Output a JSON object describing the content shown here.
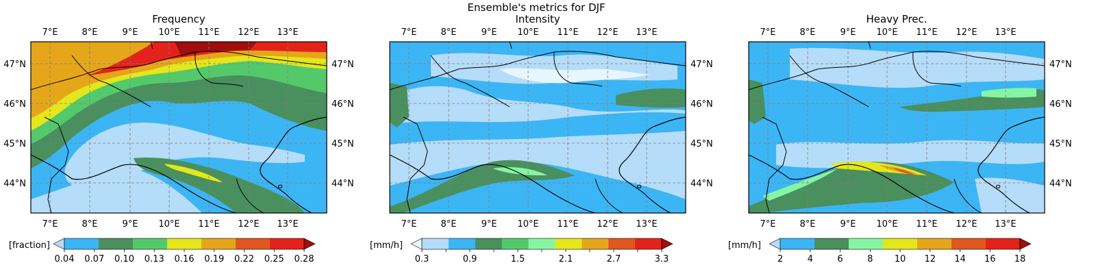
{
  "figure_title": "Ensemble's metrics for DJF",
  "lon_labels": [
    "7°E",
    "8°E",
    "9°E",
    "10°E",
    "11°E",
    "12°E",
    "13°E"
  ],
  "lat_labels": [
    "47°N",
    "46°N",
    "45°N",
    "44°N"
  ],
  "panels": [
    {
      "title": "Frequency",
      "unit": "[fraction]",
      "ticks": [
        "0.04",
        "0.07",
        "0.10",
        "0.13",
        "0.16",
        "0.19",
        "0.22",
        "0.25",
        "0.28"
      ],
      "colors": [
        "#b5dcf8",
        "#3cb5f5",
        "#4a8f5e",
        "#54c96c",
        "#e3e71b",
        "#e5a61a",
        "#e2561f",
        "#e3231b",
        "#a10e0e"
      ]
    },
    {
      "title": "Intensity",
      "unit": "[mm/h]",
      "ticks": [
        "0.3",
        "",
        "0.9",
        "",
        "1.5",
        "",
        "2.1",
        "",
        "2.7",
        "",
        "3.3"
      ],
      "colors": [
        "#e7f5fd",
        "#b5dcf8",
        "#3cb5f5",
        "#4a8f5e",
        "#54c96c",
        "#86f5a3",
        "#e3e71b",
        "#e5a61a",
        "#e2561f",
        "#e3231b",
        "#a10e0e"
      ]
    },
    {
      "title": "Heavy Prec.",
      "unit": "[mm/h]",
      "ticks": [
        "2",
        "4",
        "6",
        "8",
        "10",
        "12",
        "14",
        "16",
        "18"
      ],
      "colors": [
        "#b5dcf8",
        "#3cb5f5",
        "#4a8f5e",
        "#86f5a3",
        "#e3e71b",
        "#e5a61a",
        "#e2561f",
        "#e3231b",
        "#a10e0e"
      ]
    }
  ]
}
